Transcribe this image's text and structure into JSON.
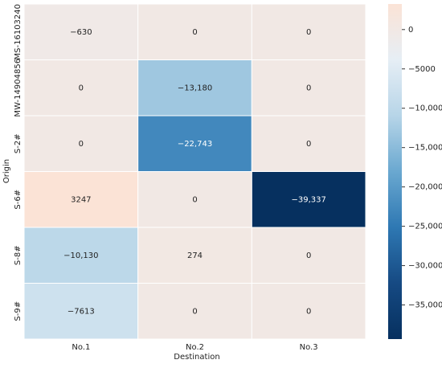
{
  "chart_data": {
    "type": "heatmap",
    "x_label": "Destination",
    "y_label": "Origin",
    "x_categories": [
      "No.1",
      "No.2",
      "No.3"
    ],
    "y_categories": [
      "MS-16103240",
      "MW-14904856",
      "S-2#",
      "S-6#",
      "S-8#",
      "S-9#"
    ],
    "values": [
      [
        -630,
        0,
        0
      ],
      [
        0,
        -13180,
        0
      ],
      [
        0,
        -22743,
        0
      ],
      [
        3247,
        0,
        -39337
      ],
      [
        -10130,
        274,
        0
      ],
      [
        -7613,
        0,
        0
      ]
    ],
    "value_labels": [
      [
        "−630",
        "0",
        "0"
      ],
      [
        "0",
        "−13,180",
        "0"
      ],
      [
        "0",
        "−22,743",
        "0"
      ],
      [
        "3247",
        "0",
        "−39,337"
      ],
      [
        "−10,130",
        "274",
        "0"
      ],
      [
        "−7613",
        "0",
        "0"
      ]
    ],
    "clim": [
      -39337,
      3247
    ],
    "colorscale": [
      "#06305f",
      "#164a83",
      "#2e78b3",
      "#6aa8d0",
      "#b7d5e8",
      "#e6eef5",
      "#fbe3d6"
    ],
    "cticks": [
      0,
      {
        "value": -5000,
        "label": "−5000"
      },
      {
        "value": -10000,
        "label": "−10,000"
      },
      {
        "value": -15000,
        "label": "−15,000"
      },
      {
        "value": -20000,
        "label": "−20,000"
      },
      {
        "value": -25000,
        "label": "−25,000"
      },
      {
        "value": -30000,
        "label": "−30,000"
      },
      {
        "value": -35000,
        "label": "−35,000"
      }
    ]
  }
}
